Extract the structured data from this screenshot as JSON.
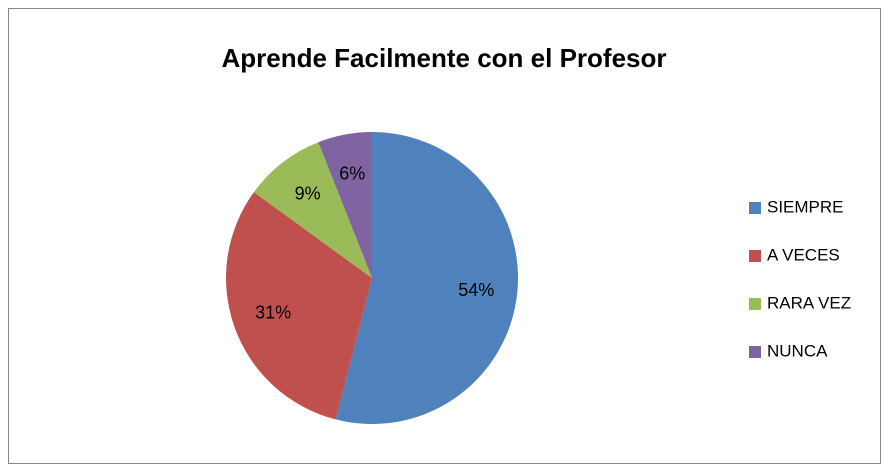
{
  "chart_data": {
    "type": "pie",
    "title": "Aprende Facilmente con el Profesor",
    "categories": [
      "SIEMPRE",
      "A VECES",
      "RARA VEZ",
      "NUNCA"
    ],
    "values": [
      54,
      31,
      9,
      6
    ],
    "value_labels": [
      "54%",
      "31%",
      "9%",
      "6%"
    ],
    "colors": [
      "#4f81bd",
      "#c0504d",
      "#9bbb59",
      "#8064a2"
    ],
    "legend": "right"
  }
}
